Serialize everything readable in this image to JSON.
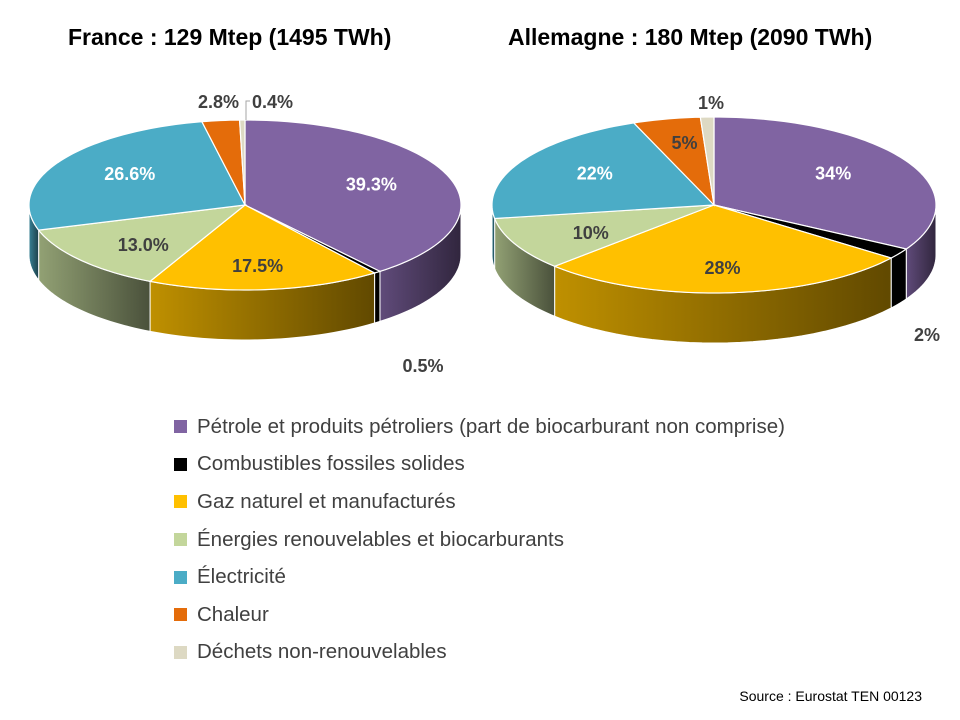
{
  "chart_data": [
    {
      "type": "pie",
      "title": "France : 129 Mtep (1495 TWh)",
      "categories": [
        "Pétrole et produits pétroliers (part de biocarburant non comprise)",
        "Combustibles fossiles solides",
        "Gaz naturel et manufacturés",
        "Énergies renouvelables et biocarburants",
        "Électricité",
        "Chaleur",
        "Déchets non-renouvelables"
      ],
      "values": [
        39.3,
        0.5,
        17.5,
        13.0,
        26.6,
        2.8,
        0.4
      ],
      "labels": [
        "39.3%",
        "0.5%",
        "17.5%",
        "13.0%",
        "26.6%",
        "2.8%",
        "0.4%"
      ]
    },
    {
      "type": "pie",
      "title": "Allemagne : 180 Mtep (2090 TWh)",
      "categories": [
        "Pétrole et produits pétroliers (part de biocarburant non comprise)",
        "Combustibles fossiles solides",
        "Gaz naturel et manufacturés",
        "Énergies renouvelables et biocarburants",
        "Électricité",
        "Chaleur",
        "Déchets non-renouvelables"
      ],
      "values": [
        34,
        2,
        28,
        10,
        22,
        5,
        1
      ],
      "labels": [
        "34%",
        "2%",
        "28%",
        "10%",
        "22%",
        "5%",
        "1%"
      ]
    }
  ],
  "colors": [
    "#8064A2",
    "#000000",
    "#FFC000",
    "#C3D69B",
    "#4BACC6",
    "#E46C0A",
    "#DDD9C3"
  ],
  "label_colors": [
    "#FFFFFF",
    "#404040",
    "#404040",
    "#404040",
    "#FFFFFF",
    "#404040",
    "#404040"
  ],
  "legend": [
    "Pétrole et produits pétroliers (part de biocarburant non comprise)",
    "Combustibles fossiles solides",
    "Gaz naturel et manufacturés",
    "Énergies renouvelables et biocarburants",
    "Électricité",
    "Chaleur",
    "Déchets non-renouvelables"
  ],
  "source": "Source : Eurostat TEN  00123"
}
